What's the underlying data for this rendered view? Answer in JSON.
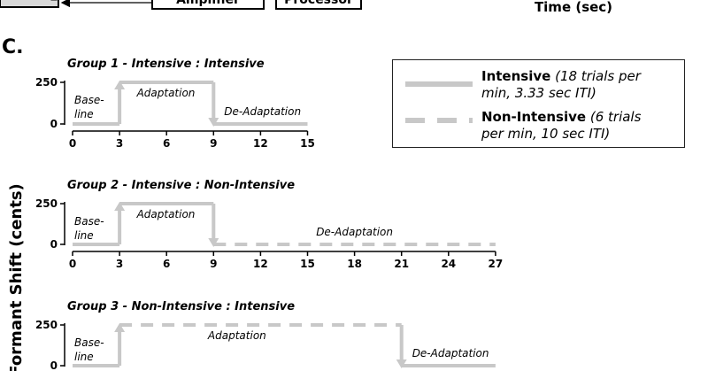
{
  "top_fragment": {
    "box1_label": "Amplifier",
    "box2_label": "Processor",
    "time_label": "Time (sec)"
  },
  "panel_label": "C.",
  "y_axis_label": "Formant Shift (cents)",
  "legend": {
    "intensive": {
      "name": "Intensive",
      "detail_line1": "(18 trials per",
      "detail_line2": "min, 3.33 sec ITI)"
    },
    "non_intensive": {
      "name": "Non-Intensive",
      "detail_line1": "(6 trials",
      "detail_line2": "per min, 10 sec ITI)"
    }
  },
  "colors": {
    "trace": "#c8c8c8",
    "axis": "#000000",
    "legend_border": "#222222"
  },
  "chart_data": [
    {
      "type": "line",
      "title": "Group 1 - Intensive : Intensive",
      "y_ticks": [
        0,
        250
      ],
      "x_ticks": [
        0,
        3,
        6,
        9,
        12,
        15
      ],
      "xlim": [
        0,
        15
      ],
      "ylim": [
        0,
        250
      ],
      "phases": [
        {
          "name": "Base- line",
          "from": 0,
          "to": 3,
          "value": 0,
          "style": "solid"
        },
        {
          "name": "Adaptation",
          "from": 3,
          "to": 9,
          "value": 250,
          "style": "solid"
        },
        {
          "name": "De-Adaptation",
          "from": 9,
          "to": 15,
          "value": 0,
          "style": "solid"
        }
      ]
    },
    {
      "type": "line",
      "title": "Group 2 - Intensive : Non-Intensive",
      "y_ticks": [
        0,
        250
      ],
      "x_ticks": [
        0,
        3,
        6,
        9,
        12,
        15,
        18,
        21,
        24,
        27
      ],
      "xlim": [
        0,
        27
      ],
      "ylim": [
        0,
        250
      ],
      "phases": [
        {
          "name": "Base- line",
          "from": 0,
          "to": 3,
          "value": 0,
          "style": "solid"
        },
        {
          "name": "Adaptation",
          "from": 3,
          "to": 9,
          "value": 250,
          "style": "solid"
        },
        {
          "name": "De-Adaptation",
          "from": 9,
          "to": 27,
          "value": 0,
          "style": "dashed"
        }
      ]
    },
    {
      "type": "line",
      "title": "Group 3 - Non-Intensive : Intensive",
      "y_ticks": [
        0,
        250
      ],
      "x_ticks": [],
      "xlim": [
        0,
        27
      ],
      "ylim": [
        0,
        250
      ],
      "phases": [
        {
          "name": "Base- line",
          "from": 0,
          "to": 3,
          "value": 0,
          "style": "solid"
        },
        {
          "name": "Adaptation",
          "from": 3,
          "to": 21,
          "value": 250,
          "style": "dashed"
        },
        {
          "name": "De-Adaptation",
          "from": 21,
          "to": 27,
          "value": 0,
          "style": "solid"
        }
      ]
    }
  ]
}
